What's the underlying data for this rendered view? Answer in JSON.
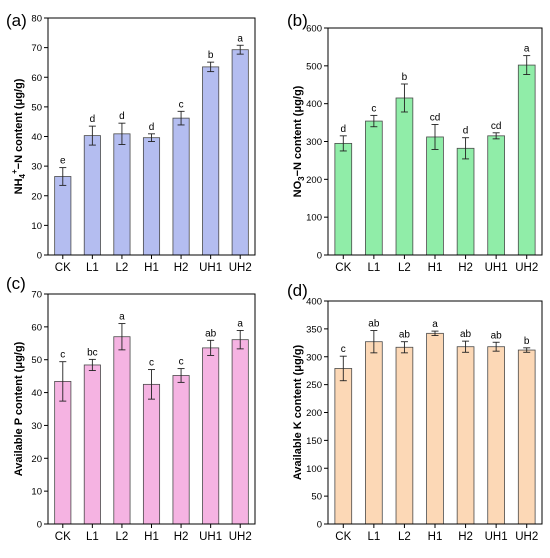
{
  "chart_data": [
    {
      "type": "bar",
      "panel_label": "(a)",
      "ylabel_parts": [
        "NH",
        "4",
        "+",
        "−N content (μg/g)"
      ],
      "categories": [
        "CK",
        "L1",
        "L2",
        "H1",
        "H2",
        "UH1",
        "UH2"
      ],
      "values": [
        26.5,
        40.3,
        40.9,
        39.6,
        46.2,
        63.5,
        69.3
      ],
      "errors": [
        3.0,
        3.2,
        3.6,
        1.3,
        2.3,
        1.6,
        1.5
      ],
      "letters": [
        "e",
        "d",
        "d",
        "d",
        "c",
        "b",
        "a"
      ],
      "ylim": [
        0,
        80
      ],
      "yticks": [
        0,
        10,
        20,
        30,
        40,
        50,
        60,
        70,
        80
      ],
      "color": "#b4bdf0",
      "edge": "#4a4a4a"
    },
    {
      "type": "bar",
      "panel_label": "(b)",
      "ylabel_parts": [
        "NO",
        "3",
        "",
        "−N content (μg/g)"
      ],
      "categories": [
        "CK",
        "L1",
        "L2",
        "H1",
        "H2",
        "UH1",
        "UH2"
      ],
      "values": [
        295,
        354,
        415,
        312,
        282,
        315,
        502
      ],
      "errors": [
        20,
        15,
        37,
        33,
        28,
        8,
        25
      ],
      "letters": [
        "d",
        "c",
        "b",
        "cd",
        "d",
        "cd",
        "a"
      ],
      "ylim": [
        0,
        600
      ],
      "yticks": [
        0,
        100,
        200,
        300,
        400,
        500,
        600
      ],
      "color": "#90eda8",
      "edge": "#4a4a4a"
    },
    {
      "type": "bar",
      "panel_label": "(c)",
      "ylabel_parts": [
        "Available P content (μg/g)"
      ],
      "categories": [
        "CK",
        "L1",
        "L2",
        "H1",
        "H2",
        "UH1",
        "UH2"
      ],
      "values": [
        43.4,
        48.4,
        57.0,
        42.5,
        45.2,
        53.6,
        56.1
      ],
      "errors": [
        6.0,
        1.7,
        4.0,
        4.5,
        2.1,
        2.3,
        2.8
      ],
      "letters": [
        "c",
        "bc",
        "a",
        "c",
        "c",
        "ab",
        "a"
      ],
      "ylim": [
        0,
        70
      ],
      "yticks": [
        0,
        10,
        20,
        30,
        40,
        50,
        60,
        70
      ],
      "color": "#f5b3e2",
      "edge": "#4a4a4a"
    },
    {
      "type": "bar",
      "panel_label": "(d)",
      "ylabel_parts": [
        "Available K content (μg/g)"
      ],
      "categories": [
        "CK",
        "L1",
        "L2",
        "H1",
        "H2",
        "UH1",
        "UH2"
      ],
      "values": [
        279,
        327,
        317,
        342,
        318,
        318,
        312
      ],
      "errors": [
        22,
        20,
        10,
        4,
        10,
        8,
        4
      ],
      "letters": [
        "c",
        "ab",
        "ab",
        "a",
        "ab",
        "ab",
        "b"
      ],
      "ylim": [
        0,
        400
      ],
      "yticks": [
        0,
        50,
        100,
        150,
        200,
        250,
        300,
        350,
        400
      ],
      "color": "#fcd8b6",
      "edge": "#4a4a4a"
    }
  ]
}
